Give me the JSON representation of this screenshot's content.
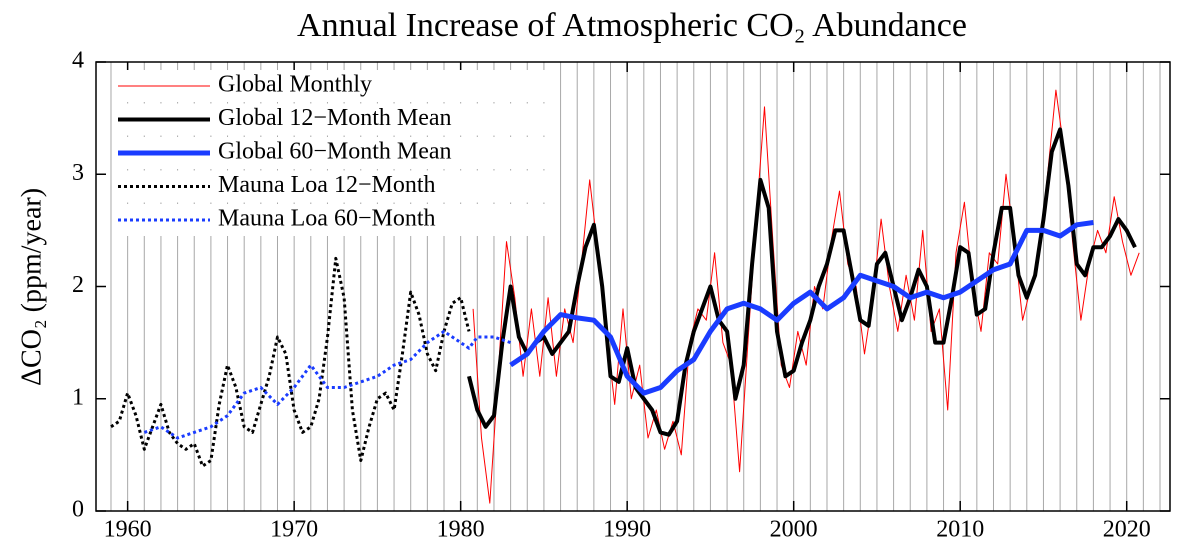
{
  "chart_data": {
    "type": "line",
    "title": "Annual Increase of Atmospheric CO₂ Abundance",
    "y_label": "ΔCO₂ (ppm/year)",
    "xlim": [
      1958.1,
      2022.6
    ],
    "ylim": [
      0,
      4
    ],
    "xticks": [
      1960,
      1970,
      1980,
      1990,
      2000,
      2010,
      2020
    ],
    "yticks": [
      0,
      1,
      2,
      3,
      4
    ],
    "x_minor_grid": [
      1959,
      1960,
      1961,
      1962,
      1963,
      1964,
      1965,
      1966,
      1967,
      1968,
      1969,
      1970,
      1971,
      1972,
      1973,
      1974,
      1975,
      1976,
      1977,
      1978,
      1979,
      1980,
      1981,
      1982,
      1983,
      1984,
      1985,
      1986,
      1987,
      1988,
      1989,
      1990,
      1991,
      1992,
      1993,
      1994,
      1995,
      1996,
      1997,
      1998,
      1999,
      2000,
      2001,
      2002,
      2003,
      2004,
      2005,
      2006,
      2007,
      2008,
      2009,
      2010,
      2011,
      2012,
      2013,
      2014,
      2015,
      2016,
      2017,
      2018,
      2019,
      2020,
      2021,
      2022
    ],
    "legend": "upper left",
    "series": [
      {
        "name": "Global Monthly",
        "color": "#ff0000",
        "dash": "solid",
        "line_width": 1,
        "x": [
          1980.75,
          1981.25,
          1981.75,
          1982.25,
          1982.75,
          1983.25,
          1983.75,
          1984.25,
          1984.75,
          1985.25,
          1985.75,
          1986.25,
          1986.75,
          1987.25,
          1987.75,
          1988.25,
          1988.75,
          1989.25,
          1989.75,
          1990.25,
          1990.75,
          1991.25,
          1991.75,
          1992.25,
          1992.75,
          1993.25,
          1993.75,
          1994.25,
          1994.75,
          1995.25,
          1995.75,
          1996.25,
          1996.75,
          1997.25,
          1997.75,
          1998.25,
          1998.75,
          1999.25,
          1999.75,
          2000.25,
          2000.75,
          2001.25,
          2001.75,
          2002.25,
          2002.75,
          2003.25,
          2003.75,
          2004.25,
          2004.75,
          2005.25,
          2005.75,
          2006.25,
          2006.75,
          2007.25,
          2007.75,
          2008.25,
          2008.75,
          2009.25,
          2009.75,
          2010.25,
          2010.75,
          2011.25,
          2011.75,
          2012.25,
          2012.75,
          2013.25,
          2013.75,
          2014.25,
          2014.75,
          2015.25,
          2015.75,
          2016.25,
          2016.75,
          2017.25,
          2017.75,
          2018.25,
          2018.75,
          2019.25,
          2019.75,
          2020.25,
          2020.75
        ],
        "values": [
          1.8,
          0.65,
          0.07,
          1.2,
          2.4,
          1.9,
          1.2,
          1.8,
          1.2,
          1.9,
          1.2,
          1.8,
          1.5,
          2.2,
          2.95,
          2.3,
          1.6,
          0.95,
          1.8,
          1.0,
          1.3,
          0.65,
          0.9,
          0.55,
          0.8,
          0.5,
          1.5,
          1.8,
          1.7,
          2.3,
          1.5,
          1.3,
          0.35,
          1.5,
          2.6,
          3.6,
          2.4,
          1.3,
          1.1,
          1.6,
          1.3,
          2.0,
          1.8,
          2.4,
          2.85,
          2.2,
          2.0,
          1.4,
          1.9,
          2.6,
          2.0,
          1.6,
          2.1,
          1.7,
          2.5,
          1.6,
          1.8,
          0.9,
          2.3,
          2.75,
          2.0,
          1.6,
          2.3,
          2.2,
          3.0,
          2.4,
          1.7,
          2.0,
          2.3,
          3.0,
          3.75,
          3.2,
          2.4,
          1.7,
          2.2,
          2.5,
          2.3,
          2.8,
          2.4,
          2.1,
          2.3
        ]
      },
      {
        "name": "Global 12−Month Mean",
        "color": "#000000",
        "dash": "solid",
        "line_width": 4,
        "x": [
          1980.5,
          1981,
          1981.5,
          1982,
          1982.5,
          1983,
          1983.5,
          1984,
          1984.5,
          1985,
          1985.5,
          1986,
          1986.5,
          1987,
          1987.5,
          1988,
          1988.5,
          1989,
          1989.5,
          1990,
          1990.5,
          1991,
          1991.5,
          1992,
          1992.5,
          1993,
          1993.5,
          1994,
          1994.5,
          1995,
          1995.5,
          1996,
          1996.5,
          1997,
          1997.5,
          1998,
          1998.5,
          1999,
          1999.5,
          2000,
          2000.5,
          2001,
          2001.5,
          2002,
          2002.5,
          2003,
          2003.5,
          2004,
          2004.5,
          2005,
          2005.5,
          2006,
          2006.5,
          2007,
          2007.5,
          2008,
          2008.5,
          2009,
          2009.5,
          2010,
          2010.5,
          2011,
          2011.5,
          2012,
          2012.5,
          2013,
          2013.5,
          2014,
          2014.5,
          2015,
          2015.5,
          2016,
          2016.5,
          2017,
          2017.5,
          2018,
          2018.5,
          2019,
          2019.5,
          2020,
          2020.5
        ],
        "values": [
          1.2,
          0.9,
          0.75,
          0.85,
          1.5,
          2.0,
          1.55,
          1.4,
          1.5,
          1.55,
          1.4,
          1.5,
          1.6,
          2.0,
          2.35,
          2.55,
          2.0,
          1.2,
          1.15,
          1.45,
          1.1,
          1.0,
          0.9,
          0.7,
          0.68,
          0.8,
          1.3,
          1.6,
          1.8,
          2.0,
          1.7,
          1.6,
          1.0,
          1.3,
          2.2,
          2.95,
          2.7,
          1.6,
          1.2,
          1.25,
          1.5,
          1.7,
          2.0,
          2.2,
          2.5,
          2.5,
          2.1,
          1.7,
          1.65,
          2.2,
          2.3,
          2.0,
          1.7,
          1.9,
          2.15,
          2.0,
          1.5,
          1.5,
          1.9,
          2.35,
          2.3,
          1.75,
          1.8,
          2.3,
          2.7,
          2.7,
          2.1,
          1.9,
          2.1,
          2.6,
          3.2,
          3.4,
          2.9,
          2.2,
          2.1,
          2.35,
          2.35,
          2.45,
          2.6,
          2.5,
          2.35
        ]
      },
      {
        "name": "Global 60−Month Mean",
        "color": "#1a3cff",
        "dash": "solid",
        "line_width": 5,
        "x": [
          1983,
          1984,
          1985,
          1986,
          1987,
          1988,
          1989,
          1990,
          1991,
          1992,
          1993,
          1994,
          1995,
          1996,
          1997,
          1998,
          1999,
          2000,
          2001,
          2002,
          2003,
          2004,
          2005,
          2006,
          2007,
          2008,
          2009,
          2010,
          2011,
          2012,
          2013,
          2014,
          2015,
          2016,
          2017,
          2018
        ],
        "values": [
          1.3,
          1.4,
          1.6,
          1.75,
          1.72,
          1.7,
          1.55,
          1.2,
          1.05,
          1.1,
          1.25,
          1.35,
          1.6,
          1.8,
          1.85,
          1.8,
          1.7,
          1.85,
          1.95,
          1.8,
          1.9,
          2.1,
          2.05,
          2.0,
          1.9,
          1.95,
          1.9,
          1.95,
          2.05,
          2.15,
          2.2,
          2.5,
          2.5,
          2.45,
          2.55,
          2.57
        ]
      },
      {
        "name": "Mauna Loa 12−Month",
        "color": "#000000",
        "dash": "dotted",
        "line_width": 3,
        "x": [
          1959,
          1959.5,
          1960,
          1960.5,
          1961,
          1961.5,
          1962,
          1962.5,
          1963,
          1963.5,
          1964,
          1964.5,
          1965,
          1965.5,
          1966,
          1966.5,
          1967,
          1967.5,
          1968,
          1968.5,
          1969,
          1969.5,
          1970,
          1970.5,
          1971,
          1971.5,
          1972,
          1972.5,
          1973,
          1973.5,
          1974,
          1974.5,
          1975,
          1975.5,
          1976,
          1976.5,
          1977,
          1977.5,
          1978,
          1978.5,
          1979,
          1979.5,
          1980,
          1980.5
        ],
        "values": [
          0.75,
          0.8,
          1.05,
          0.85,
          0.55,
          0.75,
          0.95,
          0.7,
          0.6,
          0.55,
          0.6,
          0.4,
          0.45,
          0.95,
          1.3,
          1.1,
          0.75,
          0.7,
          0.95,
          1.2,
          1.55,
          1.4,
          0.9,
          0.7,
          0.75,
          1.0,
          1.55,
          2.25,
          1.9,
          0.9,
          0.45,
          0.75,
          1.0,
          1.05,
          0.9,
          1.4,
          1.95,
          1.75,
          1.4,
          1.25,
          1.6,
          1.85,
          1.9,
          1.6
        ]
      },
      {
        "name": "Mauna Loa 60−Month",
        "color": "#1a3cff",
        "dash": "dotted",
        "line_width": 3,
        "x": [
          1961,
          1962,
          1963,
          1964,
          1965,
          1966,
          1967,
          1968,
          1969,
          1970,
          1971,
          1972,
          1973,
          1974,
          1975,
          1976,
          1977,
          1978,
          1979,
          1980,
          1980.5,
          1981,
          1982,
          1983
        ],
        "values": [
          0.7,
          0.75,
          0.65,
          0.7,
          0.75,
          0.85,
          1.05,
          1.1,
          0.95,
          1.1,
          1.3,
          1.1,
          1.1,
          1.15,
          1.2,
          1.3,
          1.35,
          1.5,
          1.6,
          1.5,
          1.45,
          1.55,
          1.55,
          1.5
        ]
      }
    ]
  }
}
